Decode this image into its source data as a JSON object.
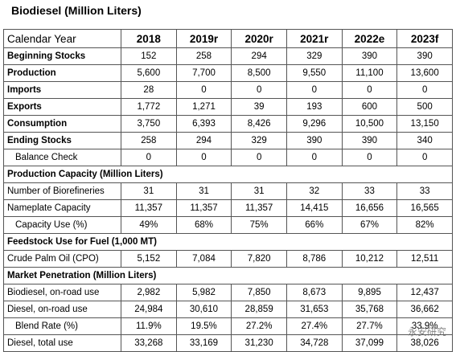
{
  "header": {
    "title": "Biodiesel (Million Liters)"
  },
  "table": {
    "columns": [
      "Calendar Year",
      "2018",
      "2019r",
      "2020r",
      "2021r",
      "2022e",
      "2023f"
    ],
    "rows": [
      [
        "Beginning Stocks",
        "152",
        "258",
        "294",
        "329",
        "390",
        "390"
      ],
      [
        "Production",
        "5,600",
        "7,700",
        "8,500",
        "9,550",
        "11,100",
        "13,600"
      ],
      [
        "Imports",
        "28",
        "0",
        "0",
        "0",
        "0",
        "0"
      ],
      [
        "Exports",
        "1,772",
        "1,271",
        "39",
        "193",
        "600",
        "500"
      ],
      [
        "Consumption",
        "3,750",
        "6,393",
        "8,426",
        "9,296",
        "10,500",
        "13,150"
      ],
      [
        "Ending Stocks",
        "258",
        "294",
        "329",
        "390",
        "390",
        "340"
      ],
      [
        "Balance Check",
        "0",
        "0",
        "0",
        "0",
        "0",
        "0"
      ],
      [
        "Production Capacity (Million Liters)"
      ],
      [
        "Number of Biorefineries",
        "31",
        "31",
        "31",
        "32",
        "33",
        "33"
      ],
      [
        "Nameplate Capacity",
        "11,357",
        "11,357",
        "11,357",
        "14,415",
        "16,656",
        "16,565"
      ],
      [
        "Capacity Use (%)",
        "49%",
        "68%",
        "75%",
        "66%",
        "67%",
        "82%"
      ],
      [
        "Feedstock Use for Fuel (1,000 MT)"
      ],
      [
        "Crude Palm Oil (CPO)",
        "5,152",
        "7,084",
        "7,820",
        "8,786",
        "10,212",
        "12,511"
      ],
      [
        "Market Penetration (Million Liters)"
      ],
      [
        "Biodiesel, on-road use",
        "2,982",
        "5,982",
        "7,850",
        "8,673",
        "9,895",
        "12,437"
      ],
      [
        "Diesel, on-road use",
        "24,984",
        "30,610",
        "28,859",
        "31,653",
        "35,768",
        "36,662"
      ],
      [
        "Blend Rate (%)",
        "11.9%",
        "19.5%",
        "27.2%",
        "27.4%",
        "27.7%",
        "33.9%"
      ],
      [
        "Diesel, total use",
        "33,268",
        "33,169",
        "31,230",
        "34,728",
        "37,099",
        "38,026"
      ]
    ]
  },
  "watermark": "永安研究"
}
